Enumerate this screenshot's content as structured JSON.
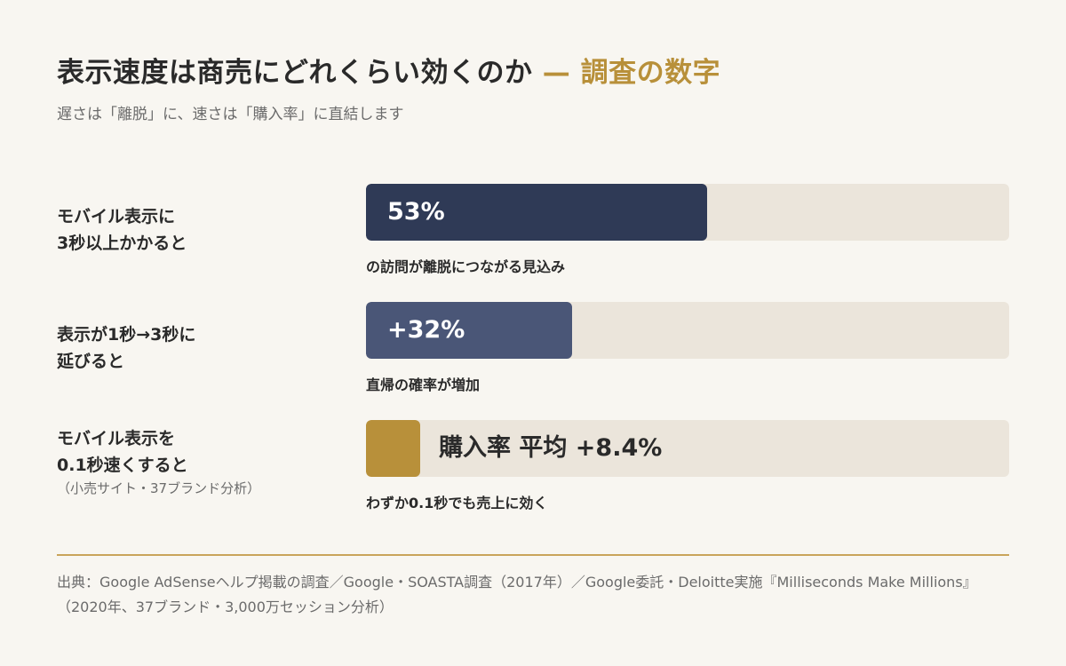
{
  "header": {
    "title": "表示速度は商売にどれくらい効くのか",
    "title_accent": "— 調査の数字",
    "subtitle": "遅さは「離脱」に、速さは「購入率」に直結します"
  },
  "colors": {
    "bar_1": "#2f3a56",
    "bar_2": "#4a5677",
    "bar_3": "#b8903a",
    "track": "#ebe5db",
    "accent": "#b8903a"
  },
  "chart_data": {
    "type": "bar",
    "orientation": "horizontal",
    "xlim": [
      0,
      100
    ],
    "rows": [
      {
        "label_line1": "モバイル表示に",
        "label_line2": "3秒以上かかると",
        "note": "",
        "value": 53,
        "value_label": "53%",
        "caption": "の訪問が離脱につながる見込み"
      },
      {
        "label_line1": "表示が1秒→3秒に",
        "label_line2": "延びると",
        "note": "",
        "value": 32,
        "value_label": "+32%",
        "caption": "直帰の確率が増加"
      },
      {
        "label_line1": "モバイル表示を",
        "label_line2": "0.1秒速くすると",
        "note": "（小売サイト・37ブランド分析）",
        "value": 8.4,
        "value_label": "購入率 平均 +8.4%",
        "caption": "わずか0.1秒でも売上に効く"
      }
    ]
  },
  "footer": {
    "source": "出典：Google AdSenseヘルプ掲載の調査／Google・SOASTA調査（2017年）／Google委託・Deloitte実施『Milliseconds Make Millions』（2020年、37ブランド・3,000万セッション分析）"
  }
}
